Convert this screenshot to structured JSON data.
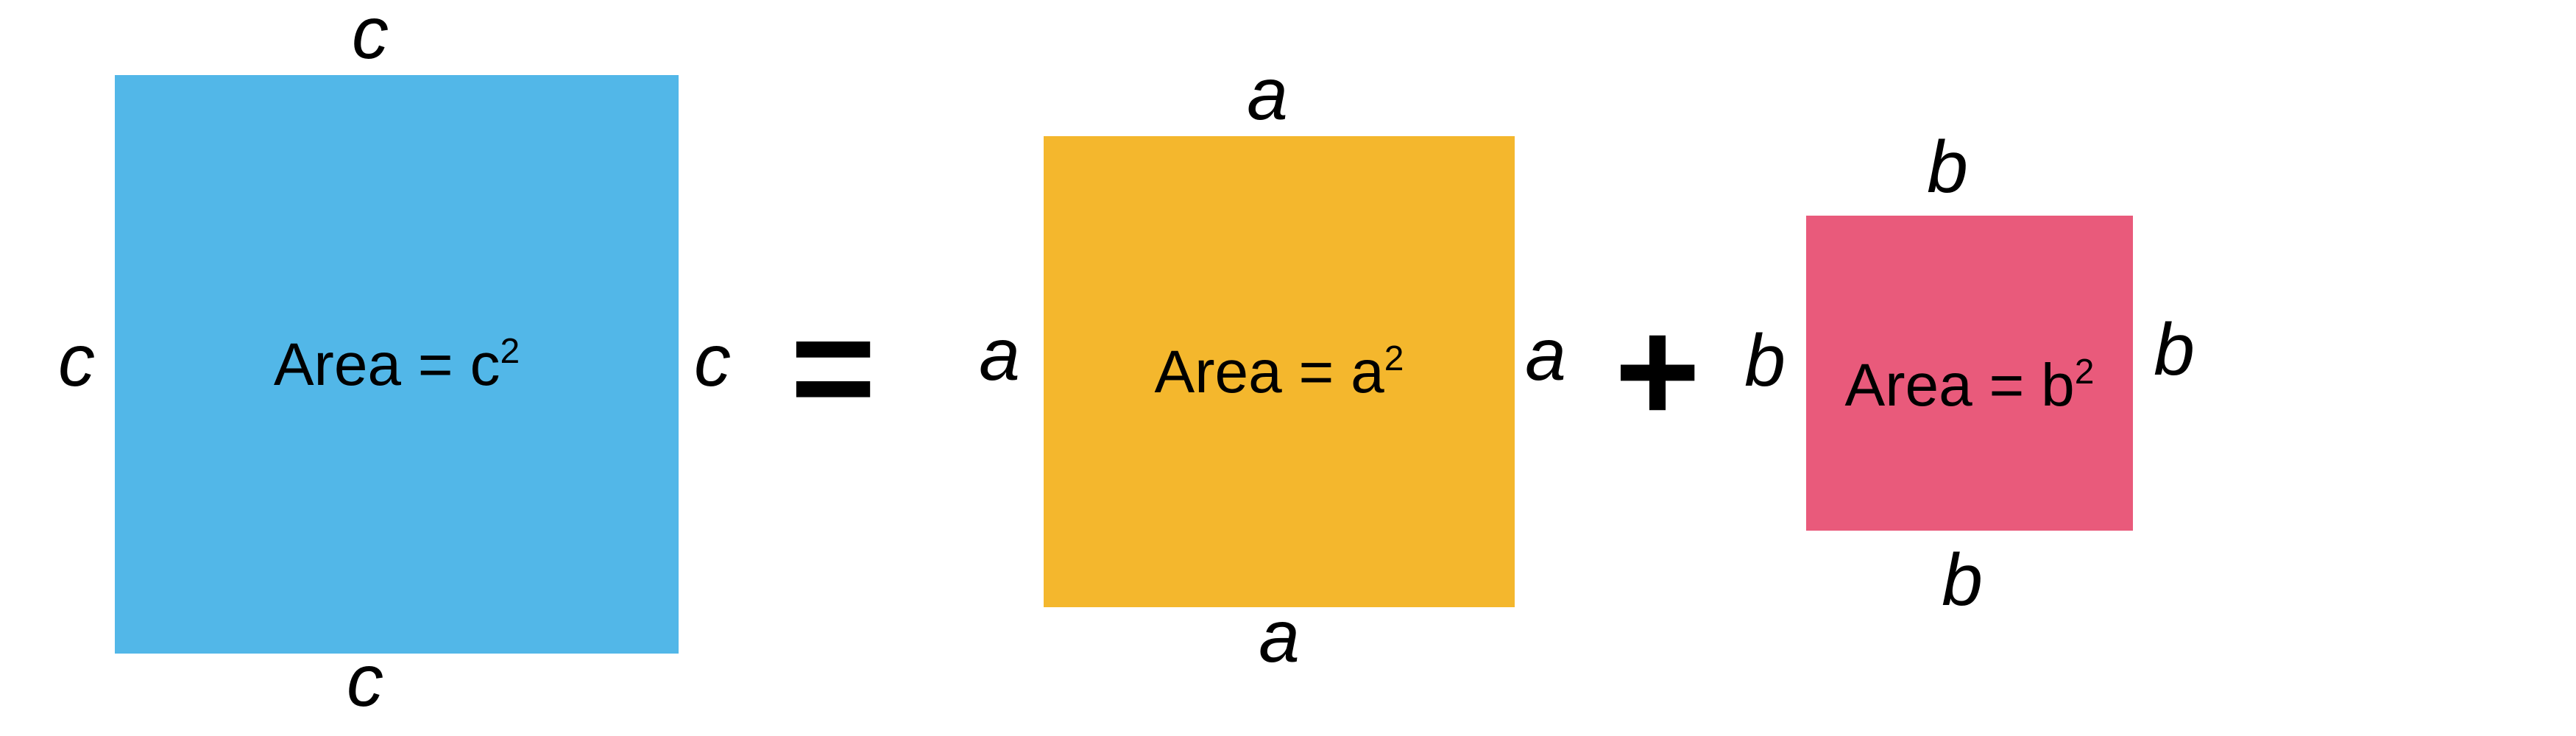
{
  "squares": {
    "c": {
      "side_label": "c",
      "area_text": "Area = c",
      "exponent": "2",
      "color": "#52b7e8"
    },
    "a": {
      "side_label": "a",
      "area_text": "Area = a",
      "exponent": "2",
      "color": "#f4b72d"
    },
    "b": {
      "side_label": "b",
      "area_text": "Area = b",
      "exponent": "2",
      "color": "#e95a7b"
    }
  },
  "operators": {
    "equals": "=",
    "plus": "+"
  }
}
